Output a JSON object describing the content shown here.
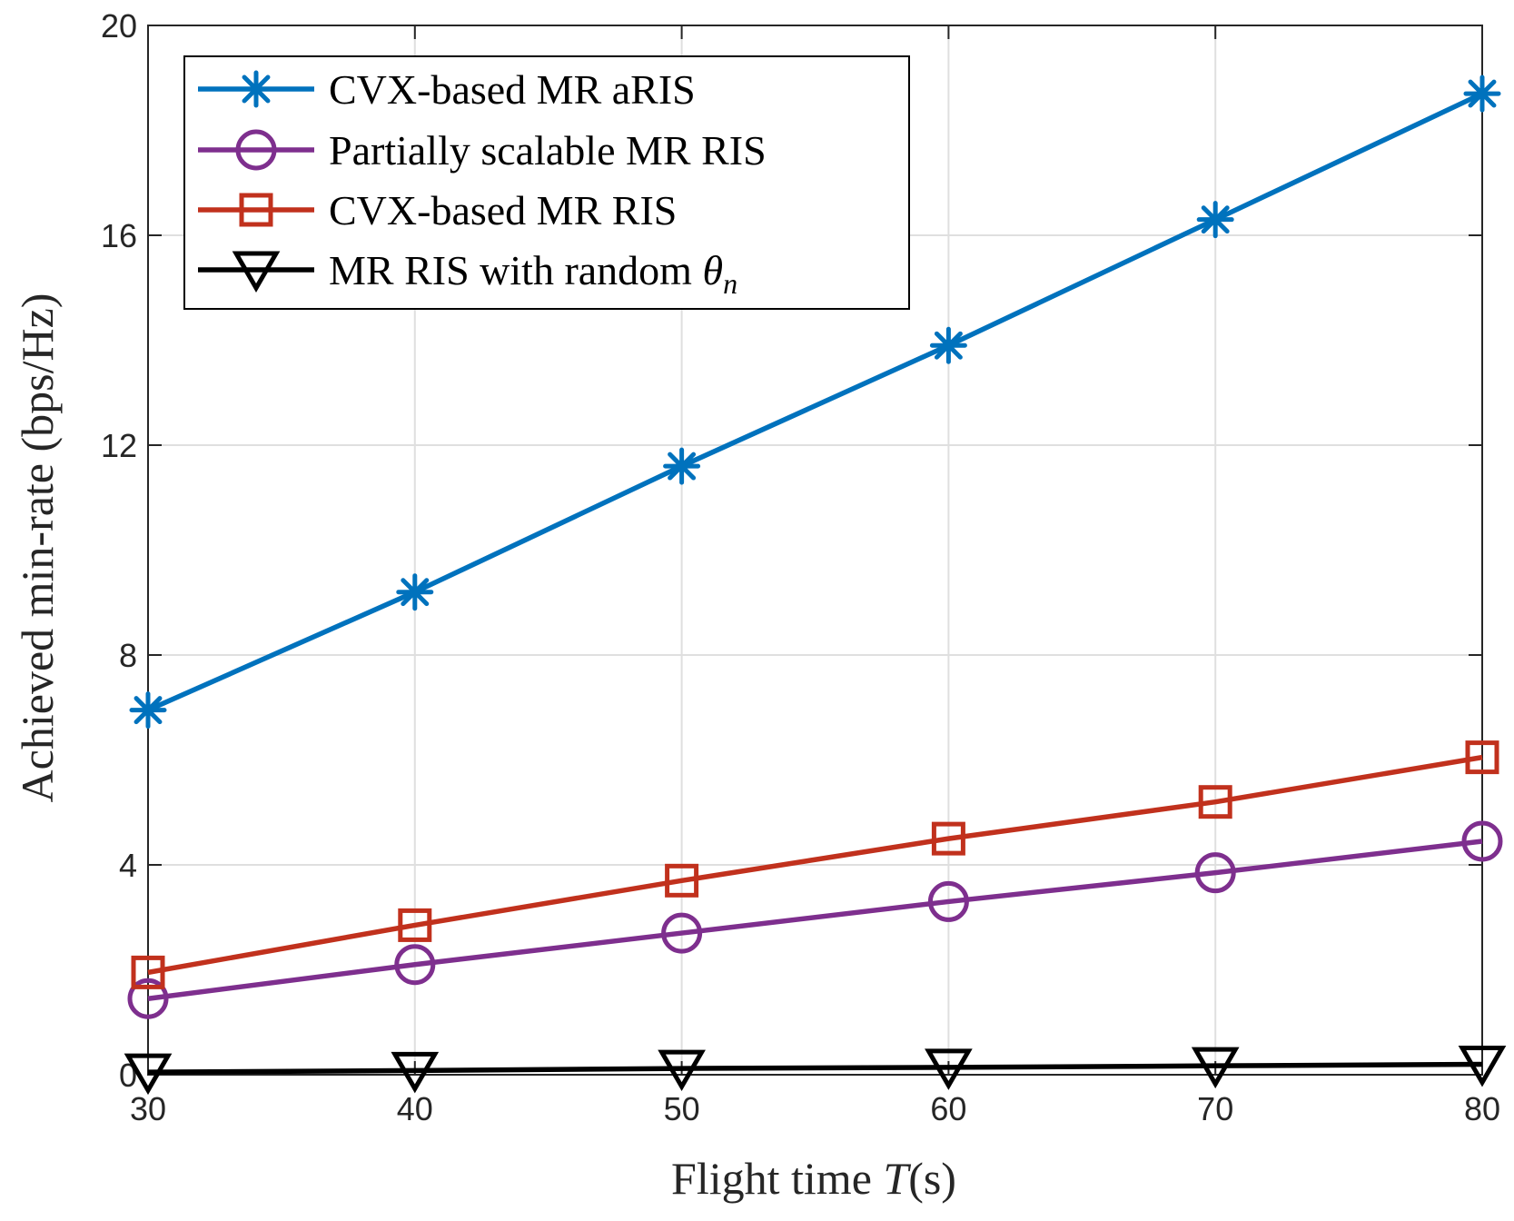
{
  "chart_data": {
    "type": "line",
    "title": "",
    "xlabel_prefix": "Flight time ",
    "xlabel_var": "T",
    "xlabel_suffix": "(s)",
    "ylabel": "Achieved min-rate (bps/Hz)",
    "x": [
      30,
      40,
      50,
      60,
      70,
      80
    ],
    "xlim": [
      30,
      80
    ],
    "ylim": [
      0,
      20
    ],
    "xticks": [
      30,
      40,
      50,
      60,
      70,
      80
    ],
    "yticks": [
      0,
      4,
      8,
      12,
      16,
      20
    ],
    "xtick_labels": [
      "30",
      "40",
      "50",
      "60",
      "70",
      "80"
    ],
    "ytick_labels": [
      "0",
      "4",
      "8",
      "12",
      "16",
      "20"
    ],
    "grid": true,
    "legend_position": "top-left",
    "series": [
      {
        "name": "CVX-based MR aRIS",
        "label_text": "CVX-based MR aRIS",
        "label_symbol": "",
        "label_subscript": "",
        "marker": "asterisk",
        "color": "#0072bd",
        "values": [
          6.95,
          9.2,
          11.6,
          13.9,
          16.3,
          18.7
        ]
      },
      {
        "name": "Partially scalable MR RIS",
        "label_text": "Partially scalable MR RIS",
        "label_symbol": "",
        "label_subscript": "",
        "marker": "circle",
        "color": "#7e2f8e",
        "values": [
          1.45,
          2.1,
          2.7,
          3.3,
          3.85,
          4.45
        ]
      },
      {
        "name": "CVX-based MR RIS",
        "label_text": "CVX-based MR RIS",
        "label_symbol": "",
        "label_subscript": "",
        "marker": "square",
        "color": "#c1311d",
        "values": [
          1.95,
          2.85,
          3.7,
          4.5,
          5.2,
          6.05
        ]
      },
      {
        "name": "MR RIS with random θn",
        "label_text": "MR RIS with random ",
        "label_symbol": "θ",
        "label_subscript": "n",
        "marker": "triangle-down",
        "color": "#000000",
        "values": [
          0.05,
          0.08,
          0.12,
          0.14,
          0.17,
          0.2
        ]
      }
    ]
  }
}
